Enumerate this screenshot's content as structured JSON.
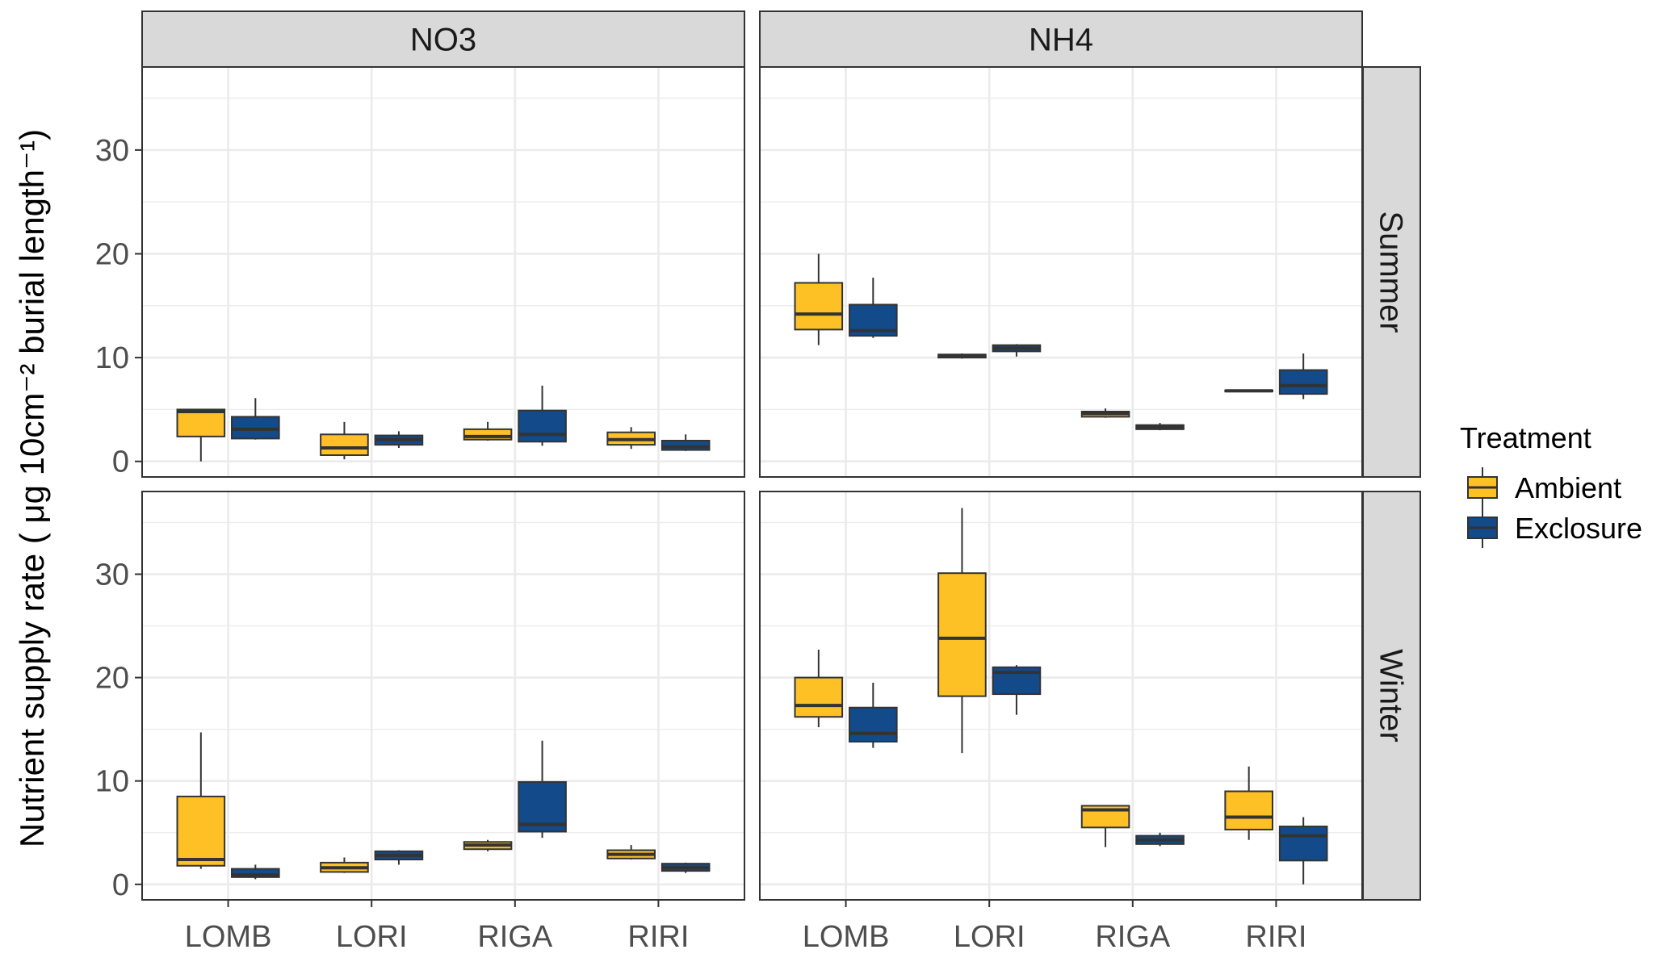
{
  "chart_data": {
    "type": "boxplot",
    "ylabel": "Nutrient supply rate ( μg  10cm⁻² burial length⁻¹)",
    "ylim": [
      -1.5,
      38
    ],
    "yticks": [
      0,
      10,
      20,
      30
    ],
    "categories": [
      "LOMB",
      "LORI",
      "RIGA",
      "RIRI"
    ],
    "column_facets": [
      "NO3",
      "NH4"
    ],
    "row_facets": [
      "Summer",
      "Winter"
    ],
    "legend": {
      "title": "Treatment",
      "entries": [
        {
          "name": "Ambient",
          "color": "#FDC126"
        },
        {
          "name": "Exclosure",
          "color": "#134A8A"
        }
      ]
    },
    "colors": {
      "Ambient": "#FDC126",
      "Exclosure": "#134A8A",
      "panel_border": "#333333",
      "strip_fill": "#D9D9D9",
      "grid": "#EBEBEB"
    },
    "panels": [
      {
        "column": "NO3",
        "row": "Summer",
        "boxes": [
          {
            "category": "LOMB",
            "treatment": "Ambient",
            "min": 0.0,
            "q1": 2.4,
            "median": 4.8,
            "q3": 5.0,
            "max": 5.0
          },
          {
            "category": "LOMB",
            "treatment": "Exclosure",
            "min": 2.1,
            "q1": 2.2,
            "median": 3.1,
            "q3": 4.3,
            "max": 6.1
          },
          {
            "category": "LORI",
            "treatment": "Ambient",
            "min": 0.2,
            "q1": 0.6,
            "median": 1.3,
            "q3": 2.6,
            "max": 3.8
          },
          {
            "category": "LORI",
            "treatment": "Exclosure",
            "min": 1.3,
            "q1": 1.6,
            "median": 2.1,
            "q3": 2.5,
            "max": 2.9
          },
          {
            "category": "RIGA",
            "treatment": "Ambient",
            "min": 2.0,
            "q1": 2.1,
            "median": 2.4,
            "q3": 3.1,
            "max": 3.8
          },
          {
            "category": "RIGA",
            "treatment": "Exclosure",
            "min": 1.5,
            "q1": 1.9,
            "median": 2.6,
            "q3": 4.9,
            "max": 7.3
          },
          {
            "category": "RIRI",
            "treatment": "Ambient",
            "min": 1.2,
            "q1": 1.6,
            "median": 2.1,
            "q3": 2.8,
            "max": 3.3
          },
          {
            "category": "RIRI",
            "treatment": "Exclosure",
            "min": 1.0,
            "q1": 1.1,
            "median": 1.4,
            "q3": 2.0,
            "max": 2.6
          }
        ]
      },
      {
        "column": "NH4",
        "row": "Summer",
        "boxes": [
          {
            "category": "LOMB",
            "treatment": "Ambient",
            "min": 11.2,
            "q1": 12.7,
            "median": 14.2,
            "q3": 17.2,
            "max": 20.0
          },
          {
            "category": "LOMB",
            "treatment": "Exclosure",
            "min": 11.9,
            "q1": 12.1,
            "median": 12.6,
            "q3": 15.1,
            "max": 17.7
          },
          {
            "category": "LORI",
            "treatment": "Ambient",
            "min": 9.9,
            "q1": 10.0,
            "median": 10.1,
            "q3": 10.3,
            "max": 10.4
          },
          {
            "category": "LORI",
            "treatment": "Exclosure",
            "min": 10.1,
            "q1": 10.6,
            "median": 10.9,
            "q3": 11.2,
            "max": 11.3
          },
          {
            "category": "RIGA",
            "treatment": "Ambient",
            "min": 4.2,
            "q1": 4.3,
            "median": 4.6,
            "q3": 4.8,
            "max": 5.1
          },
          {
            "category": "RIGA",
            "treatment": "Exclosure",
            "min": 3.0,
            "q1": 3.1,
            "median": 3.3,
            "q3": 3.5,
            "max": 3.7
          },
          {
            "category": "RIRI",
            "treatment": "Ambient",
            "min": 6.7,
            "q1": 6.75,
            "median": 6.8,
            "q3": 6.85,
            "max": 6.9
          },
          {
            "category": "RIRI",
            "treatment": "Exclosure",
            "min": 6.0,
            "q1": 6.5,
            "median": 7.3,
            "q3": 8.8,
            "max": 10.4
          }
        ]
      },
      {
        "column": "NO3",
        "row": "Winter",
        "boxes": [
          {
            "category": "LOMB",
            "treatment": "Ambient",
            "min": 1.5,
            "q1": 1.8,
            "median": 2.4,
            "q3": 8.5,
            "max": 14.7
          },
          {
            "category": "LOMB",
            "treatment": "Exclosure",
            "min": 0.5,
            "q1": 0.7,
            "median": 0.9,
            "q3": 1.5,
            "max": 1.9
          },
          {
            "category": "LORI",
            "treatment": "Ambient",
            "min": 1.1,
            "q1": 1.2,
            "median": 1.6,
            "q3": 2.1,
            "max": 2.6
          },
          {
            "category": "LORI",
            "treatment": "Exclosure",
            "min": 1.9,
            "q1": 2.4,
            "median": 2.8,
            "q3": 3.2,
            "max": 3.3
          },
          {
            "category": "RIGA",
            "treatment": "Ambient",
            "min": 3.2,
            "q1": 3.4,
            "median": 3.8,
            "q3": 4.1,
            "max": 4.3
          },
          {
            "category": "RIGA",
            "treatment": "Exclosure",
            "min": 4.5,
            "q1": 5.1,
            "median": 5.8,
            "q3": 9.9,
            "max": 13.9
          },
          {
            "category": "RIRI",
            "treatment": "Ambient",
            "min": 2.4,
            "q1": 2.5,
            "median": 2.9,
            "q3": 3.3,
            "max": 3.8
          },
          {
            "category": "RIRI",
            "treatment": "Exclosure",
            "min": 1.1,
            "q1": 1.3,
            "median": 1.6,
            "q3": 2.0,
            "max": 2.1
          }
        ]
      },
      {
        "column": "NH4",
        "row": "Winter",
        "boxes": [
          {
            "category": "LOMB",
            "treatment": "Ambient",
            "min": 15.2,
            "q1": 16.2,
            "median": 17.3,
            "q3": 20.0,
            "max": 22.7
          },
          {
            "category": "LOMB",
            "treatment": "Exclosure",
            "min": 13.2,
            "q1": 13.8,
            "median": 14.6,
            "q3": 17.1,
            "max": 19.5
          },
          {
            "category": "LORI",
            "treatment": "Ambient",
            "min": 12.7,
            "q1": 18.2,
            "median": 23.8,
            "q3": 30.1,
            "max": 36.4
          },
          {
            "category": "LORI",
            "treatment": "Exclosure",
            "min": 16.4,
            "q1": 18.4,
            "median": 20.5,
            "q3": 21.0,
            "max": 21.2
          },
          {
            "category": "RIGA",
            "treatment": "Ambient",
            "min": 3.6,
            "q1": 5.5,
            "median": 7.2,
            "q3": 7.6,
            "max": 7.6
          },
          {
            "category": "RIGA",
            "treatment": "Exclosure",
            "min": 3.7,
            "q1": 3.9,
            "median": 4.3,
            "q3": 4.7,
            "max": 5.0
          },
          {
            "category": "RIRI",
            "treatment": "Ambient",
            "min": 4.3,
            "q1": 5.3,
            "median": 6.5,
            "q3": 9.0,
            "max": 11.4
          },
          {
            "category": "RIRI",
            "treatment": "Exclosure",
            "min": 0.0,
            "q1": 2.3,
            "median": 4.7,
            "q3": 5.6,
            "max": 6.5
          }
        ]
      }
    ]
  }
}
